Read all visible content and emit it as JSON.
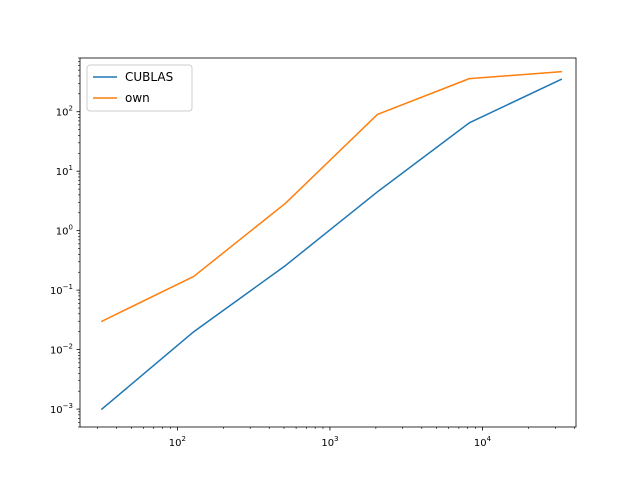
{
  "chart_data": {
    "type": "line",
    "title": "",
    "xlabel": "",
    "ylabel": "",
    "xscale": "log",
    "yscale": "log",
    "xlim": [
      23,
      41000
    ],
    "ylim": [
      0.0005,
      800
    ],
    "grid": false,
    "legend": {
      "placement": "top-left"
    },
    "x_ticks": [
      {
        "value": 100,
        "base": "10",
        "exp": "2"
      },
      {
        "value": 1000,
        "base": "10",
        "exp": "3"
      },
      {
        "value": 10000,
        "base": "10",
        "exp": "4"
      }
    ],
    "y_ticks": [
      {
        "value": 0.001,
        "base": "10",
        "exp": "−3"
      },
      {
        "value": 0.01,
        "base": "10",
        "exp": "−2"
      },
      {
        "value": 0.1,
        "base": "10",
        "exp": "−1"
      },
      {
        "value": 1,
        "base": "10",
        "exp": "0"
      },
      {
        "value": 10,
        "base": "10",
        "exp": "1"
      },
      {
        "value": 100,
        "base": "10",
        "exp": "2"
      }
    ],
    "series": [
      {
        "name": "CUBLAS",
        "color": "#1f77b4",
        "x": [
          32,
          128,
          512,
          2048,
          8192,
          32768
        ],
        "y": [
          0.001,
          0.02,
          0.26,
          4.5,
          65,
          350
        ]
      },
      {
        "name": "own",
        "color": "#ff7f0e",
        "x": [
          32,
          128,
          512,
          2048,
          8192,
          32768
        ],
        "y": [
          0.03,
          0.17,
          2.9,
          90,
          360,
          470
        ]
      }
    ]
  }
}
